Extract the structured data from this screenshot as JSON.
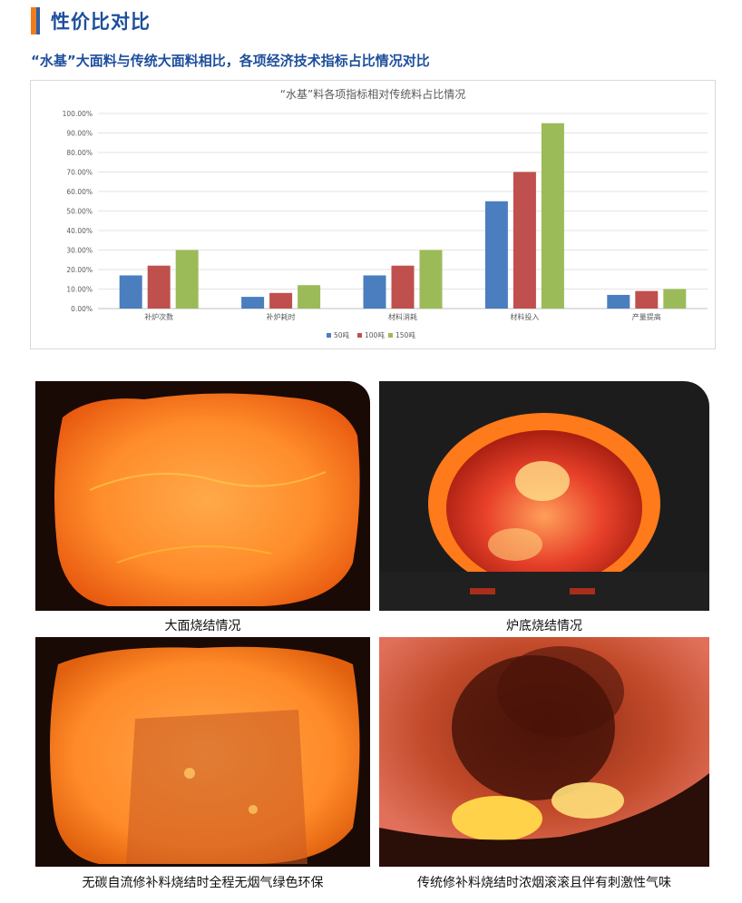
{
  "section": {
    "title": "性价比对比",
    "bar_colors": [
      "#ef7d1a",
      "#2f5fa8"
    ]
  },
  "subtitle": "“水基”大面料与传统大面料相比，各项经济技术指标占比情况对比",
  "chart_data": {
    "type": "bar",
    "title": "“水基”料各项指标相对传统料占比情况",
    "categories": [
      "补炉次数",
      "补炉耗时",
      "材料消耗",
      "材料投入",
      "产量提高"
    ],
    "series": [
      {
        "name": "50吨",
        "color": "#4a7ebf",
        "values": [
          0.17,
          0.06,
          0.17,
          0.55,
          0.07
        ]
      },
      {
        "name": "100吨",
        "color": "#c0504d",
        "values": [
          0.22,
          0.08,
          0.22,
          0.7,
          0.09
        ]
      },
      {
        "name": "150吨",
        "color": "#9bbb59",
        "values": [
          0.3,
          0.12,
          0.3,
          0.95,
          0.1
        ]
      }
    ],
    "ylim": [
      0,
      1.0
    ],
    "yticks": [
      "0.00%",
      "10.00%",
      "20.00%",
      "30.00%",
      "40.00%",
      "50.00%",
      "60.00%",
      "70.00%",
      "80.00%",
      "90.00%",
      "100.00%"
    ],
    "grid": true,
    "legend_position": "bottom"
  },
  "photos": [
    {
      "caption": "大面烧结情况"
    },
    {
      "caption": "炉底烧结情况"
    },
    {
      "caption": "无碳自流修补料烧结时全程无烟气绿色环保"
    },
    {
      "caption": "传统修补料烧结时浓烟滚滚且伴有刺激性气味"
    }
  ]
}
